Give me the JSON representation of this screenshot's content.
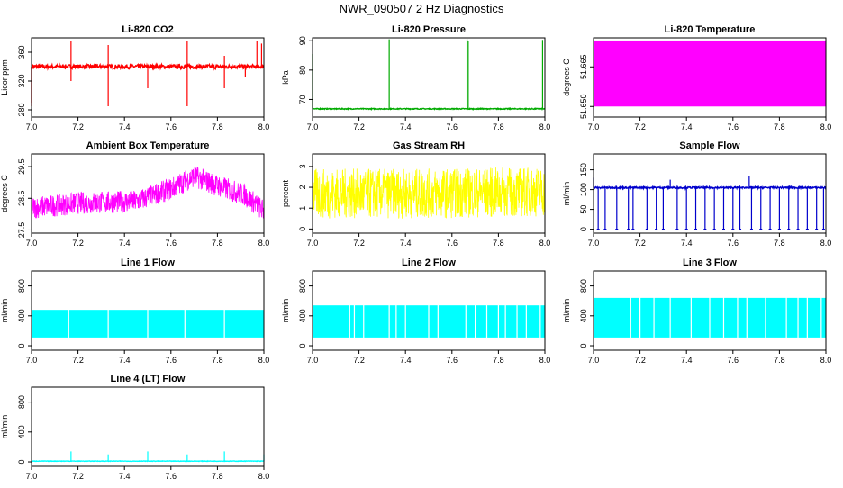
{
  "page": {
    "title": "NWR_090507  2 Hz Diagnostics"
  },
  "chart_data": [
    {
      "type": "line",
      "title": "Li-820 CO2",
      "xlabel": "",
      "ylabel": "Licor ppm",
      "xlim": [
        7.0,
        8.0
      ],
      "ylim": [
        270,
        380
      ],
      "xticks": [
        "7.0",
        "7.2",
        "7.4",
        "7.6",
        "7.8",
        "8.0"
      ],
      "yticks": [
        "280",
        "320",
        "360"
      ],
      "color": "#ff0000",
      "grid": false,
      "series": [
        {
          "baseline": 340,
          "noise": 3,
          "spikes": [
            [
              7.0,
              285
            ],
            [
              7.0,
              290
            ],
            [
              7.17,
              375
            ],
            [
              7.17,
              320
            ],
            [
              7.33,
              370
            ],
            [
              7.33,
              285
            ],
            [
              7.5,
              310
            ],
            [
              7.67,
              375
            ],
            [
              7.67,
              285
            ],
            [
              7.83,
              310
            ],
            [
              7.83,
              355
            ],
            [
              7.92,
              325
            ],
            [
              7.97,
              375
            ],
            [
              7.99,
              372
            ]
          ]
        }
      ]
    },
    {
      "type": "line",
      "title": "Li-820 Pressure",
      "xlabel": "",
      "ylabel": "kPa",
      "xlim": [
        7.0,
        8.0
      ],
      "ylim": [
        64,
        91
      ],
      "xticks": [
        "7.0",
        "7.2",
        "7.4",
        "7.6",
        "7.8",
        "8.0"
      ],
      "yticks": [
        "70",
        "80",
        "90"
      ],
      "color": "#00aa00",
      "grid": false,
      "series": [
        {
          "baseline": 66.8,
          "noise": 0.15,
          "spikes": [
            [
              7.0,
              85.5
            ],
            [
              7.33,
              90.5
            ],
            [
              7.665,
              90.5
            ],
            [
              7.67,
              90
            ],
            [
              7.99,
              90.3
            ]
          ]
        }
      ]
    },
    {
      "type": "area",
      "title": "Li-820 Temperature",
      "xlabel": "",
      "ylabel": "degrees C",
      "xlim": [
        7.0,
        8.0
      ],
      "ylim": [
        51.646,
        51.676
      ],
      "xticks": [
        "7.0",
        "7.2",
        "7.4",
        "7.6",
        "7.8",
        "8.0"
      ],
      "yticks": [
        "51.650",
        "51.665"
      ],
      "color": "#ff00ff",
      "grid": false,
      "series": [
        {
          "lower": 51.65,
          "upper": 51.675
        }
      ]
    },
    {
      "type": "line",
      "title": "Ambient Box Temperature",
      "xlabel": "",
      "ylabel": "degrees C",
      "xlim": [
        7.0,
        8.0
      ],
      "ylim": [
        27.4,
        29.9
      ],
      "xticks": [
        "7.0",
        "7.2",
        "7.4",
        "7.6",
        "7.8",
        "8.0"
      ],
      "yticks": [
        "27.5",
        "28.5",
        "29.5"
      ],
      "color": "#ff00ff",
      "grid": false,
      "series": [
        {
          "trend": [
            [
              7.0,
              28.2
            ],
            [
              7.2,
              28.35
            ],
            [
              7.45,
              28.4
            ],
            [
              7.6,
              28.8
            ],
            [
              7.7,
              29.2
            ],
            [
              7.8,
              28.9
            ],
            [
              7.92,
              28.6
            ],
            [
              8.0,
              28.1
            ]
          ],
          "halfwidth": 0.35
        }
      ]
    },
    {
      "type": "line",
      "title": "Gas Stream RH",
      "xlabel": "",
      "ylabel": "percent",
      "xlim": [
        7.0,
        8.0
      ],
      "ylim": [
        -0.2,
        3.6
      ],
      "xticks": [
        "7.0",
        "7.2",
        "7.4",
        "7.6",
        "7.8",
        "8.0"
      ],
      "yticks": [
        "0",
        "1",
        "2",
        "3"
      ],
      "color": "#ffff00",
      "grid": false,
      "series": [
        {
          "trend": [
            [
              7.0,
              1.7
            ],
            [
              7.5,
              1.7
            ],
            [
              8.0,
              1.8
            ]
          ],
          "halfwidth": 1.2
        }
      ]
    },
    {
      "type": "line",
      "title": "Sample Flow",
      "xlabel": "",
      "ylabel": "ml/min",
      "xlim": [
        7.0,
        8.0
      ],
      "ylim": [
        -10,
        190
      ],
      "xticks": [
        "7.0",
        "7.2",
        "7.4",
        "7.6",
        "7.8",
        "8.0"
      ],
      "yticks": [
        "0",
        "50",
        "100",
        "150"
      ],
      "color": "#0000cc",
      "grid": false,
      "series": [
        {
          "baseline": 105,
          "noise": 2,
          "dropto": 0,
          "drops": [
            7.02,
            7.05,
            7.1,
            7.15,
            7.17,
            7.23,
            7.27,
            7.3,
            7.36,
            7.4,
            7.44,
            7.48,
            7.52,
            7.56,
            7.6,
            7.63,
            7.68,
            7.72,
            7.76,
            7.8,
            7.84,
            7.88,
            7.92,
            7.96,
            7.99
          ],
          "spikes": [
            [
              7.0,
              130
            ],
            [
              7.33,
              125
            ],
            [
              7.67,
              135
            ]
          ]
        }
      ]
    },
    {
      "type": "line",
      "title": "Line 1 Flow",
      "xlabel": "",
      "ylabel": "ml/min",
      "xlim": [
        7.0,
        8.0
      ],
      "ylim": [
        -60,
        1000
      ],
      "xticks": [
        "7.0",
        "7.2",
        "7.4",
        "7.6",
        "7.8",
        "8.0"
      ],
      "yticks": [
        "0",
        "400",
        "800"
      ],
      "color": "#00ffff",
      "grid": false,
      "series": [
        {
          "lower": 110,
          "upper": 480,
          "gaps": [
            7.16,
            7.33,
            7.5,
            7.66,
            7.83
          ]
        }
      ]
    },
    {
      "type": "line",
      "title": "Line 2 Flow",
      "xlabel": "",
      "ylabel": "ml/min",
      "xlim": [
        7.0,
        8.0
      ],
      "ylim": [
        -60,
        1000
      ],
      "xticks": [
        "7.0",
        "7.2",
        "7.4",
        "7.6",
        "7.8",
        "8.0"
      ],
      "yticks": [
        "0",
        "400",
        "800"
      ],
      "color": "#00ffff",
      "grid": false,
      "series": [
        {
          "lower": 110,
          "upper": 540,
          "gaps": [
            7.16,
            7.18,
            7.22,
            7.33,
            7.36,
            7.4,
            7.5,
            7.54,
            7.66,
            7.7,
            7.75,
            7.8,
            7.83,
            7.88,
            7.92,
            7.98
          ]
        }
      ]
    },
    {
      "type": "line",
      "title": "Line 3 Flow",
      "xlabel": "",
      "ylabel": "ml/min",
      "xlim": [
        7.0,
        8.0
      ],
      "ylim": [
        -60,
        1000
      ],
      "xticks": [
        "7.0",
        "7.2",
        "7.4",
        "7.6",
        "7.8",
        "8.0"
      ],
      "yticks": [
        "0",
        "400",
        "800"
      ],
      "color": "#00ffff",
      "grid": false,
      "series": [
        {
          "lower": 110,
          "upper": 640,
          "gaps": [
            7.16,
            7.2,
            7.26,
            7.33,
            7.42,
            7.5,
            7.56,
            7.62,
            7.66,
            7.74,
            7.83,
            7.88,
            7.92,
            7.98
          ]
        }
      ]
    },
    {
      "type": "line",
      "title": "Line 4 (LT) Flow",
      "xlabel": "",
      "ylabel": "ml/min",
      "xlim": [
        7.0,
        8.0
      ],
      "ylim": [
        -60,
        1000
      ],
      "xticks": [
        "7.0",
        "7.2",
        "7.4",
        "7.6",
        "7.8",
        "8.0"
      ],
      "yticks": [
        "0",
        "400",
        "800"
      ],
      "color": "#00ffff",
      "grid": false,
      "series": [
        {
          "baseline": 10,
          "noise": 3,
          "spikes": [
            [
              7.17,
              140
            ],
            [
              7.33,
              100
            ],
            [
              7.5,
              140
            ],
            [
              7.67,
              100
            ],
            [
              7.83,
              140
            ],
            [
              8.0,
              100
            ]
          ]
        }
      ]
    }
  ]
}
